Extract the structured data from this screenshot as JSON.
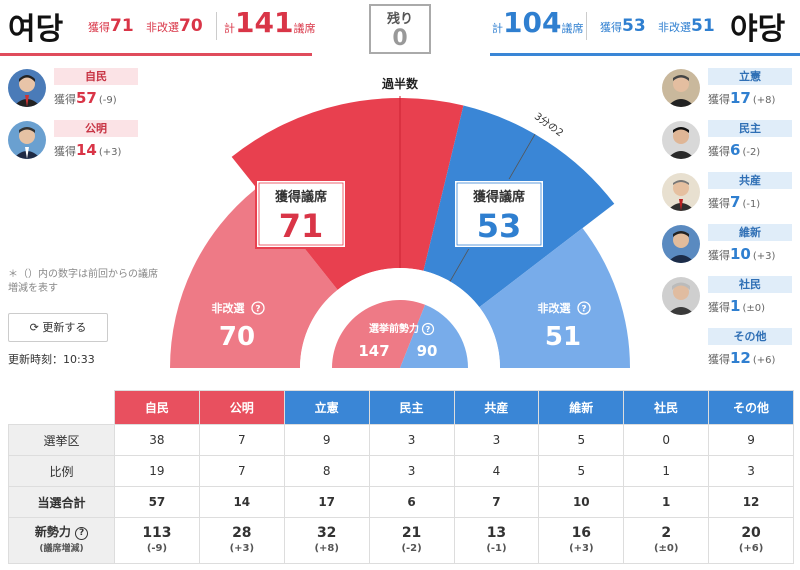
{
  "ruling": {
    "title": "여당",
    "won_label": "獲得",
    "won": "71",
    "nonelect_label": "非改選",
    "nonelect": "70",
    "total_label": "計",
    "total": "141",
    "seat_unit": "議席"
  },
  "remaining": {
    "label": "残り",
    "value": "0"
  },
  "opposition": {
    "title": "야당",
    "total_label": "計",
    "total": "104",
    "seat_unit": "議席",
    "won_label": "獲得",
    "won": "53",
    "nonelect_label": "非改選",
    "nonelect": "51"
  },
  "left_parties": [
    {
      "name": "自民",
      "won_label": "獲得",
      "won": "57",
      "change": "(-9)"
    },
    {
      "name": "公明",
      "won_label": "獲得",
      "won": "14",
      "change": "(+3)"
    }
  ],
  "right_parties": [
    {
      "name": "立憲",
      "won_label": "獲得",
      "won": "17",
      "change": "(+8)"
    },
    {
      "name": "民主",
      "won_label": "獲得",
      "won": "6",
      "change": "(-2)"
    },
    {
      "name": "共産",
      "won_label": "獲得",
      "won": "7",
      "change": "(-1)"
    },
    {
      "name": "維新",
      "won_label": "獲得",
      "won": "10",
      "change": "(+3)"
    },
    {
      "name": "社民",
      "won_label": "獲得",
      "won": "1",
      "change": "(±0)"
    },
    {
      "name": "その他",
      "won_label": "獲得",
      "won": "12",
      "change": "(+6)"
    }
  ],
  "note": "＊（）内の数字は前回からの議席増減を表す",
  "update_button": "更新する",
  "update_time": "更新時刻：10:33",
  "chart": {
    "majority_label": "過半数",
    "two_thirds_label": "3分の2",
    "won_box_label": "獲得議席",
    "ruling_won": "71",
    "opposition_won": "53",
    "nonelect_label": "非改選",
    "ruling_nonelect": "70",
    "opposition_nonelect": "51",
    "pre_label": "選挙前勢力",
    "ruling_pre": "147",
    "opposition_pre": "90",
    "colors": {
      "red_dark": "#e8404f",
      "red_light": "#ee7a86",
      "blue_dark": "#3a86d6",
      "blue_light": "#78acea"
    }
  },
  "table": {
    "headers": [
      "自民",
      "公明",
      "立憲",
      "民主",
      "共産",
      "維新",
      "社民",
      "その他"
    ],
    "rows": [
      {
        "label": "選挙区",
        "values": [
          "38",
          "7",
          "9",
          "3",
          "3",
          "5",
          "0",
          "9"
        ]
      },
      {
        "label": "比例",
        "values": [
          "19",
          "7",
          "8",
          "3",
          "4",
          "5",
          "1",
          "3"
        ]
      },
      {
        "label": "当選合計",
        "values": [
          "57",
          "14",
          "17",
          "6",
          "7",
          "10",
          "1",
          "12"
        ]
      }
    ],
    "new_row": {
      "label": "新勢力",
      "sublabel": "(議席増減)",
      "values": [
        "113",
        "28",
        "32",
        "21",
        "13",
        "16",
        "2",
        "20"
      ],
      "changes": [
        "(-9)",
        "(+3)",
        "(+8)",
        "(-2)",
        "(-1)",
        "(+3)",
        "(±0)",
        "(+6)"
      ]
    }
  }
}
